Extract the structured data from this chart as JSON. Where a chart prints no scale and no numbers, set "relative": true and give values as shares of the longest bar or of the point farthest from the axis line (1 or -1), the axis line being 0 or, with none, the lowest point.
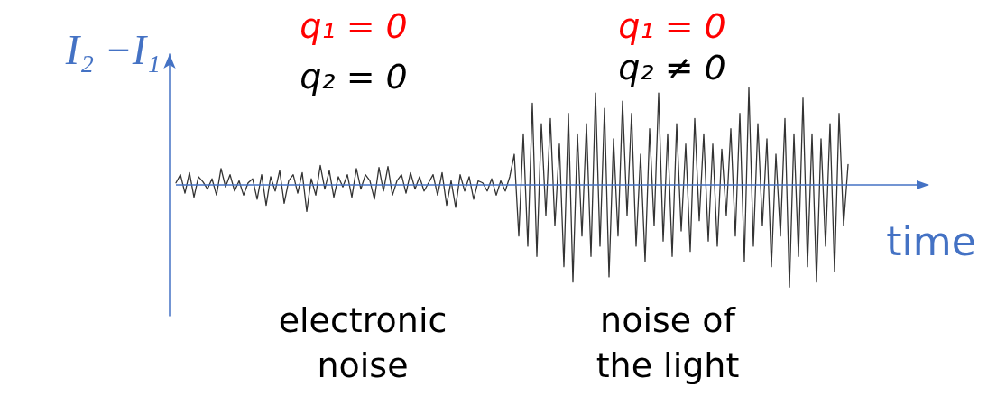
{
  "chart_data": {
    "type": "line",
    "relative": true,
    "ylabel": "I₂ −I₁",
    "xlabel": "time",
    "marker": "none",
    "ref_lines": [
      {
        "axis": "y",
        "value": 0,
        "color": "#4472c4"
      }
    ],
    "annotations": [
      "q₁ = 0",
      "q₂ = 0",
      "q₁ = 0",
      "q₂ ≠ 0",
      "electronic\nnoise",
      "noise of\nthe light"
    ],
    "categories": [
      null,
      null,
      null,
      null,
      null,
      null,
      null,
      null,
      null,
      null,
      null,
      null,
      null,
      null,
      null,
      null,
      null,
      null,
      null,
      null,
      null,
      null,
      null,
      null,
      null,
      null,
      null,
      null,
      null,
      null,
      null,
      null,
      null,
      null,
      null,
      null,
      null,
      null,
      null,
      null,
      null,
      null,
      null,
      null,
      null,
      null,
      null,
      null,
      null,
      null,
      null,
      null,
      null,
      null,
      null,
      null,
      null,
      null,
      null,
      null,
      null,
      null,
      null,
      null,
      null,
      null,
      null,
      null,
      null,
      null,
      null,
      null,
      null,
      null,
      null,
      null,
      null,
      null,
      null,
      null,
      null,
      null,
      null,
      null,
      null,
      null,
      null,
      null,
      null,
      null,
      null,
      null,
      null,
      null,
      null,
      null,
      null,
      null,
      null,
      null,
      null,
      null,
      null,
      null,
      null,
      null,
      null,
      null,
      null,
      null,
      null,
      null,
      null,
      null,
      null,
      null,
      null,
      null,
      null,
      null,
      null,
      null,
      null,
      null,
      null,
      null,
      null,
      null,
      null,
      null,
      null,
      null,
      null,
      null,
      null,
      null,
      null,
      null,
      null,
      null,
      null,
      null,
      null,
      null,
      null,
      null,
      null,
      null,
      null,
      null
    ],
    "series": [
      {
        "color": "#333333",
        "values": [
          0.02,
          0.1,
          -0.08,
          0.12,
          -0.12,
          0.08,
          0.03,
          -0.04,
          0.06,
          -0.1,
          0.16,
          -0.02,
          0.1,
          -0.06,
          0.04,
          -0.1,
          0.02,
          0.06,
          -0.14,
          0.1,
          -0.2,
          0.08,
          -0.06,
          0.14,
          -0.18,
          0.04,
          0.1,
          -0.08,
          0.12,
          -0.26,
          0.06,
          -0.1,
          0.19,
          -0.04,
          0.14,
          -0.12,
          0.08,
          -0.02,
          0.1,
          -0.12,
          0.16,
          -0.04,
          0.1,
          0.04,
          -0.14,
          0.17,
          -0.06,
          0.18,
          -0.1,
          0.04,
          0.1,
          -0.08,
          0.12,
          -0.04,
          0.08,
          -0.06,
          0.02,
          0.1,
          -0.1,
          0.12,
          -0.2,
          0.04,
          -0.22,
          0.1,
          -0.06,
          0.08,
          -0.14,
          0.04,
          0.02,
          -0.06,
          0.06,
          -0.1,
          0.04,
          -0.06,
          0.08,
          0.3,
          -0.5,
          0.5,
          -0.6,
          0.8,
          -0.7,
          0.6,
          -0.3,
          0.65,
          -0.4,
          0.4,
          -0.8,
          0.7,
          -0.95,
          0.5,
          -0.5,
          0.6,
          -0.7,
          0.9,
          -0.6,
          0.75,
          -0.9,
          0.45,
          -0.5,
          0.82,
          -0.3,
          0.7,
          -0.6,
          0.3,
          -0.75,
          0.55,
          -0.4,
          0.9,
          -0.55,
          0.5,
          -0.7,
          0.6,
          -0.45,
          0.4,
          -0.65,
          0.65,
          -0.35,
          0.5,
          -0.55,
          0.4,
          -0.6,
          0.35,
          -0.3,
          0.55,
          -0.5,
          0.7,
          -0.75,
          0.95,
          -0.6,
          0.6,
          -0.4,
          0.45,
          -0.8,
          0.3,
          -0.5,
          0.65,
          -1,
          0.5,
          -0.7,
          0.85,
          -0.8,
          0.5,
          -0.95,
          0.45,
          -0.6,
          0.6,
          -0.85,
          0.7,
          -0.4,
          0.2
        ]
      }
    ]
  }
}
